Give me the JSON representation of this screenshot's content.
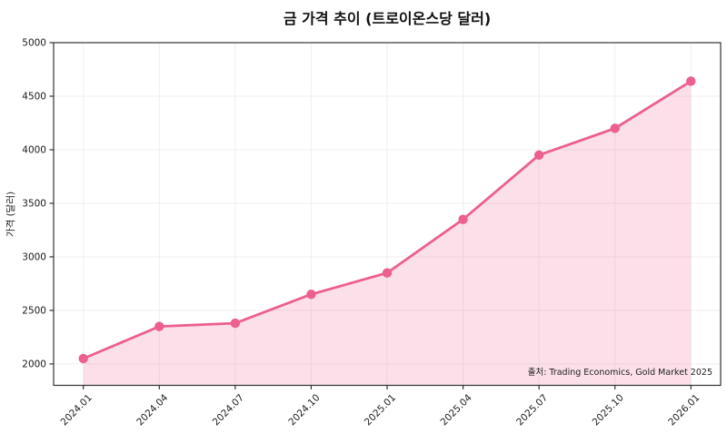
{
  "chart": {
    "title": "금 가격 추이 (트로이온스당 달러)",
    "y_axis_label": "가격 (달러)",
    "source_note": "출처: Trading Economics, Gold Market 2025"
  },
  "chart_data": {
    "type": "area",
    "title": "금 가격 추이 (트로이온스당 달러)",
    "xlabel": "",
    "ylabel": "가격 (달러)",
    "categories": [
      "2024.01",
      "2024.04",
      "2024.07",
      "2024.10",
      "2025.01",
      "2025.04",
      "2025.07",
      "2025.10",
      "2026.01"
    ],
    "values": [
      2050,
      2350,
      2380,
      2650,
      2850,
      3350,
      3950,
      4200,
      4640
    ],
    "series_name": "금 가격",
    "ylim": [
      1800,
      5000
    ],
    "yticks": [
      2000,
      2500,
      3000,
      3500,
      4000,
      4500,
      5000
    ],
    "grid": true,
    "legend": "none",
    "annotation": "출처: Trading Economics, Gold Market 2025",
    "colors": {
      "line": "#ec5f8f",
      "fill": "#ec5f8f",
      "fill_opacity": "0.2",
      "grid": "#efefef",
      "spine": "#333333",
      "text": "#1a1a1a"
    }
  }
}
